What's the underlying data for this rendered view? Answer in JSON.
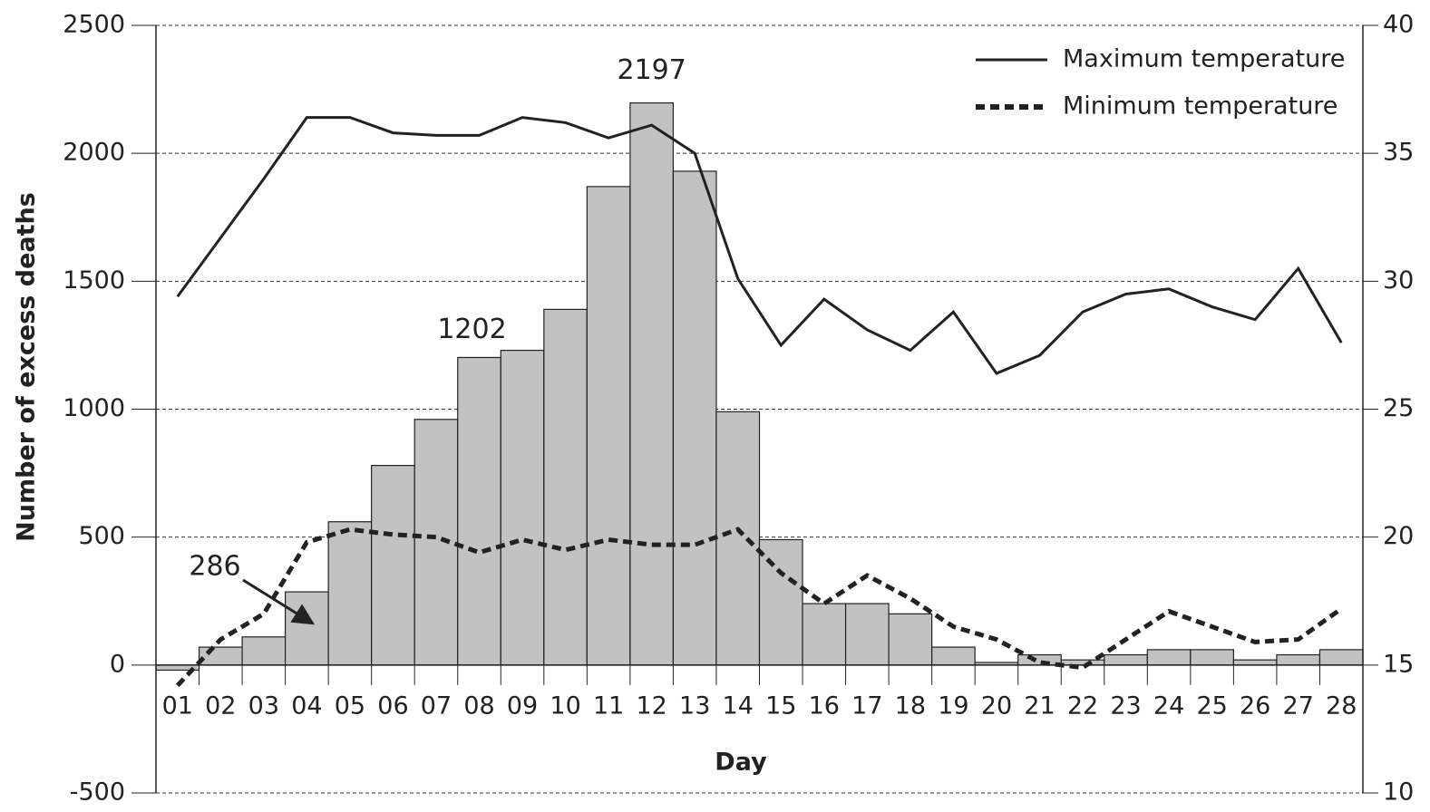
{
  "chart_data": {
    "type": "bar",
    "y_label": "Number of excess deaths",
    "x_label": "Day",
    "categories": [
      "01",
      "02",
      "03",
      "04",
      "05",
      "06",
      "07",
      "08",
      "09",
      "10",
      "11",
      "12",
      "13",
      "14",
      "15",
      "16",
      "17",
      "18",
      "19",
      "20",
      "21",
      "22",
      "23",
      "24",
      "25",
      "26",
      "27",
      "28"
    ],
    "series": [
      {
        "type": "bar",
        "color": "#c2c2c2",
        "values": [
          -20,
          70,
          110,
          286,
          560,
          780,
          960,
          1202,
          1230,
          1390,
          1870,
          2197,
          1930,
          990,
          490,
          240,
          240,
          200,
          70,
          10,
          40,
          20,
          40,
          60,
          60,
          20,
          40,
          60
        ]
      },
      {
        "type": "line",
        "name": "Maximum temperature",
        "axis": "y2",
        "color": "#222222",
        "dashed": false,
        "values": [
          29.4,
          31.7,
          34.0,
          36.4,
          36.4,
          35.8,
          35.7,
          35.7,
          36.4,
          36.2,
          35.6,
          36.1,
          35.0,
          30.1,
          27.5,
          29.3,
          28.1,
          27.3,
          28.8,
          26.4,
          27.1,
          28.8,
          29.5,
          29.7,
          29.0,
          28.5,
          30.5,
          27.6
        ]
      },
      {
        "type": "line",
        "name": "Minimum temperature",
        "axis": "y2",
        "color": "#222222",
        "dashed": true,
        "values": [
          14.2,
          16.0,
          17.0,
          19.8,
          20.3,
          20.1,
          20.0,
          19.4,
          19.9,
          19.5,
          19.9,
          19.7,
          19.7,
          20.3,
          18.6,
          17.4,
          18.5,
          17.6,
          16.5,
          16.0,
          15.1,
          14.9,
          16.0,
          17.1,
          16.5,
          15.9,
          16.0,
          17.2
        ]
      }
    ],
    "value_label_indices": [
      3,
      7,
      11
    ],
    "ylim": [
      -500,
      2500
    ],
    "yticks": [
      -500,
      0,
      500,
      1000,
      1500,
      2000,
      2500
    ],
    "y2lim": [
      10,
      40
    ],
    "y2ticks": [
      10,
      15,
      20,
      25,
      30,
      35,
      40
    ],
    "grid": true,
    "legend": "top-right"
  }
}
